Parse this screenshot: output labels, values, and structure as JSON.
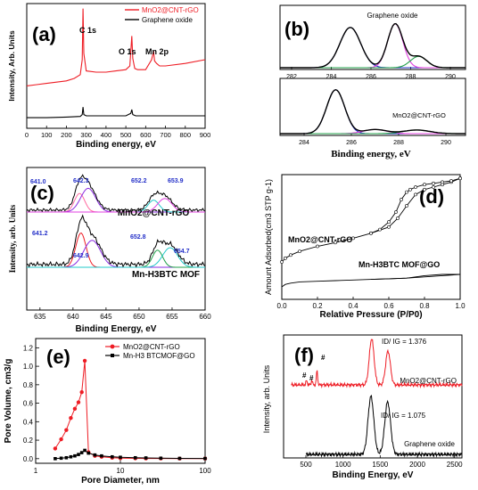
{
  "colors": {
    "red": "#ee1c24",
    "black": "#000000",
    "blue": "#2430c8",
    "magenta": "#e040e0",
    "green": "#22a04a",
    "violet": "#8a2be2",
    "cyan": "#22c8c8",
    "pink": "#ff6aa0",
    "orange": "#d08a3a"
  },
  "chart_data": [
    {
      "panel": "(a)",
      "type": "line",
      "xlabel": "Binding energy, eV",
      "ylabel": "Intensity, Arb. Units",
      "xlim": [
        0,
        900
      ],
      "xticks": [
        "0",
        "100",
        "200",
        "300",
        "400",
        "500",
        "600",
        "700",
        "800",
        "900"
      ],
      "legend": "top-right",
      "series": [
        {
          "name": "MnO2@CNT-rGO",
          "color": "#ee1c24",
          "x": [
            0,
            50,
            100,
            150,
            200,
            240,
            270,
            280,
            284,
            288,
            300,
            350,
            400,
            450,
            500,
            520,
            530,
            535,
            545,
            560,
            600,
            630,
            640,
            645,
            655,
            670,
            700,
            800,
            900
          ],
          "y": [
            0.34,
            0.35,
            0.36,
            0.37,
            0.38,
            0.4,
            0.43,
            0.55,
            0.96,
            0.6,
            0.46,
            0.45,
            0.45,
            0.46,
            0.47,
            0.5,
            0.74,
            0.56,
            0.48,
            0.47,
            0.47,
            0.55,
            0.62,
            0.54,
            0.52,
            0.5,
            0.5,
            0.52,
            0.55
          ]
        },
        {
          "name": "Graphene oxide",
          "color": "#000000",
          "x": [
            0,
            100,
            200,
            270,
            280,
            284,
            288,
            300,
            400,
            500,
            525,
            530,
            535,
            550,
            600,
            700,
            800,
            900
          ],
          "y": [
            0.085,
            0.085,
            0.09,
            0.095,
            0.11,
            0.17,
            0.11,
            0.1,
            0.1,
            0.1,
            0.12,
            0.15,
            0.11,
            0.1,
            0.1,
            0.1,
            0.1,
            0.1
          ]
        }
      ],
      "annotations": [
        "C 1s",
        "O 1s",
        "Mn 2p"
      ]
    },
    {
      "panel": "(b)",
      "type": "line",
      "xlabel": "Binding energy, eV",
      "subplots": [
        {
          "label": "Graphene oxide",
          "xlim": [
            281.5,
            291
          ],
          "xticks": [
            "282",
            "284",
            "286",
            "288",
            "290"
          ],
          "peaks": [
            {
              "center": 285.1,
              "color": "#2430c8"
            },
            {
              "center": 287.4,
              "color": "#e040e0"
            },
            {
              "center": 288.6,
              "color": "#22a04a"
            }
          ]
        },
        {
          "label": "MnO2@CNT-rGO",
          "xlim": [
            283,
            291
          ],
          "xticks": [
            "284",
            "286",
            "288",
            "290"
          ],
          "peaks": [
            {
              "center": 285.4,
              "color": "#2430c8"
            },
            {
              "center": 287.1,
              "color": "#e040e0"
            },
            {
              "center": 288.9,
              "color": "#22a04a"
            }
          ]
        }
      ]
    },
    {
      "panel": "(c)",
      "type": "line",
      "xlabel": "Binding Energy, eV",
      "ylabel": "Intensity, arb. Units",
      "xlim": [
        633,
        660
      ],
      "xticks": [
        "635",
        "640",
        "645",
        "650",
        "655",
        "660"
      ],
      "subplots": [
        {
          "label": "MnO2@CNT-rGO",
          "peaks": [
            "641.0",
            "642.3",
            "652.2",
            "653.9"
          ]
        },
        {
          "label": "Mn-H3BTC MOF",
          "peaks": [
            "641.2",
            "642.9",
            "652.8",
            "654.7"
          ]
        }
      ]
    },
    {
      "panel": "(d)",
      "type": "line",
      "xlabel": "Relative Pressure (P/P0)",
      "ylabel": "Amount Adsorbed(cm3 STP g-1)",
      "xlim": [
        0.0,
        1.0
      ],
      "xticks": [
        "0.0",
        "0.2",
        "0.4",
        "0.6",
        "0.8",
        "1.0"
      ],
      "series": [
        {
          "name": "MnO2@CNT-rGO",
          "adsorption": {
            "x": [
              0.0,
              0.02,
              0.05,
              0.1,
              0.2,
              0.3,
              0.4,
              0.5,
              0.6,
              0.65,
              0.7,
              0.75,
              0.8,
              0.85,
              0.9,
              0.95,
              1.0
            ],
            "y": [
              0.3,
              0.33,
              0.355,
              0.385,
              0.425,
              0.455,
              0.49,
              0.53,
              0.58,
              0.65,
              0.75,
              0.84,
              0.88,
              0.9,
              0.92,
              0.94,
              0.97
            ]
          },
          "desorption": {
            "x": [
              1.0,
              0.95,
              0.9,
              0.85,
              0.8,
              0.75,
              0.72,
              0.7,
              0.67,
              0.64,
              0.6,
              0.55,
              0.5
            ],
            "y": [
              0.97,
              0.95,
              0.94,
              0.93,
              0.92,
              0.9,
              0.88,
              0.86,
              0.8,
              0.7,
              0.62,
              0.56,
              0.53
            ]
          }
        },
        {
          "name": "Mn-H3BTC MOF@GO",
          "adsorption": {
            "x": [
              0.0,
              0.02,
              0.05,
              0.1,
              0.2,
              0.3,
              0.4,
              0.5,
              0.6,
              0.7,
              0.8,
              0.9,
              1.0
            ],
            "y": [
              0.1,
              0.12,
              0.13,
              0.14,
              0.145,
              0.15,
              0.155,
              0.16,
              0.165,
              0.17,
              0.18,
              0.19,
              0.2
            ]
          },
          "desorption": {
            "x": [
              1.0,
              0.9,
              0.8,
              0.75,
              0.7,
              0.6,
              0.5
            ],
            "y": [
              0.2,
              0.2,
              0.19,
              0.18,
              0.17,
              0.165,
              0.16
            ]
          }
        }
      ]
    },
    {
      "panel": "(e)",
      "type": "line",
      "xscale": "log",
      "xlabel": "Pore Diameter, nm",
      "ylabel": "Pore Volume, cm3/g",
      "xlim": [
        1,
        100
      ],
      "ylim": [
        -0.05,
        1.3
      ],
      "xticks": [
        "1",
        "10",
        "100"
      ],
      "yticks": [
        "0.0",
        "0.2",
        "0.4",
        "0.6",
        "0.8",
        "1.0",
        "1.2"
      ],
      "legend": "top-right",
      "series": [
        {
          "name": "MnO2@CNT-rGO",
          "color": "#ee1c24",
          "x": [
            1.7,
            2.0,
            2.3,
            2.6,
            2.9,
            3.2,
            3.5,
            3.8,
            4.2,
            5,
            6,
            8,
            10,
            15,
            20,
            30,
            50,
            100
          ],
          "y": [
            0.11,
            0.21,
            0.31,
            0.44,
            0.54,
            0.61,
            0.72,
            1.06,
            0.07,
            0.03,
            0.02,
            0.01,
            0.005,
            0.003,
            0.002,
            0.002,
            0.001,
            0.001
          ]
        },
        {
          "name": "Mn-H3 BTCMOF@GO",
          "color": "#000000",
          "x": [
            1.7,
            2.0,
            2.3,
            2.6,
            2.9,
            3.2,
            3.5,
            3.8,
            4.2,
            5,
            6,
            8,
            10,
            15,
            20,
            30,
            50,
            100
          ],
          "y": [
            0.0,
            0.005,
            0.01,
            0.02,
            0.03,
            0.045,
            0.065,
            0.09,
            0.06,
            0.04,
            0.03,
            0.02,
            0.015,
            0.01,
            0.008,
            0.005,
            0.003,
            0.002
          ]
        }
      ]
    },
    {
      "panel": "(f)",
      "type": "line",
      "xlabel": "Binding Energy,  eV",
      "ylabel": "Intensity, arb. Units",
      "xlim": [
        200,
        2600
      ],
      "xticks": [
        "500",
        "1000",
        "1500",
        "2000",
        "2500"
      ],
      "series": [
        {
          "name": "MnO2@CNT-rGO",
          "color": "#ee1c24",
          "ratio": "ID/ IG = 1.376",
          "peaks": [
            {
              "x": 510,
              "h": 0.05
            },
            {
              "x": 580,
              "h": 0.05
            },
            {
              "x": 650,
              "h": 0.16
            },
            {
              "x": 1385,
              "h": 0.52
            },
            {
              "x": 1605,
              "h": 0.38
            }
          ]
        },
        {
          "name": "Graphene oxide",
          "color": "#000000",
          "ratio": "ID/ IG = 1.075",
          "peaks": [
            {
              "x": 1375,
              "h": 0.62
            },
            {
              "x": 1600,
              "h": 0.56
            }
          ]
        }
      ],
      "annotations": [
        "#",
        "#",
        "#"
      ]
    }
  ],
  "panels": {
    "a": {
      "label": "(a)"
    },
    "b": {
      "label": "(b)"
    },
    "c": {
      "label": "(c)"
    },
    "d": {
      "label": "(d)"
    },
    "e": {
      "label": "(e)"
    },
    "f": {
      "label": "(f)"
    }
  }
}
